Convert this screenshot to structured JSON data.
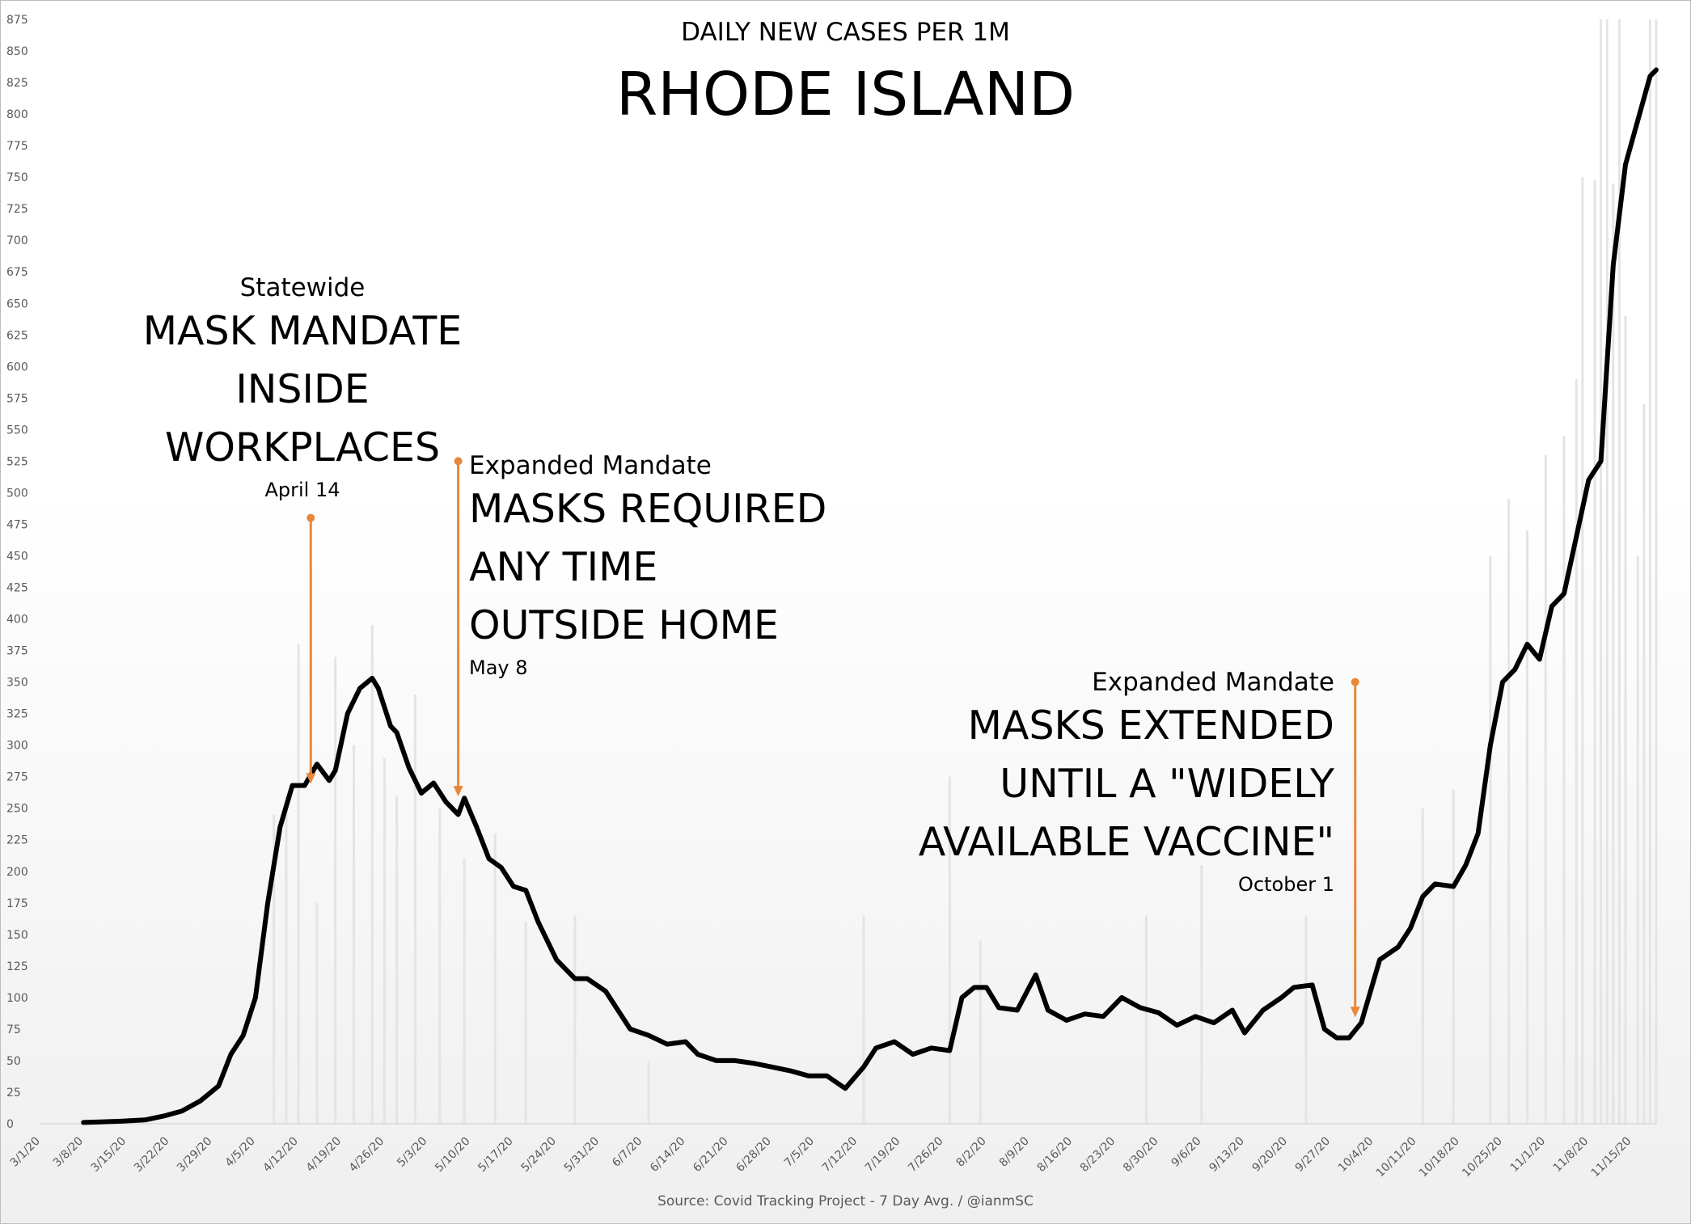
{
  "title": "RHODE ISLAND",
  "subtitle": "DAILY NEW CASES PER 1M",
  "source": "Source: Covid Tracking Project - 7 Day Avg. / @ianmSC",
  "colors": {
    "line": "#000000",
    "bars": "#e4e4e4",
    "annotation": "#e8873a",
    "axis_text": "#595959"
  },
  "annotations": [
    {
      "id": "april14",
      "kicker": "Statewide",
      "lines": [
        "MASK MANDATE",
        "INSIDE",
        "WORKPLACES"
      ],
      "date": "April 14",
      "target_x": "4/14/20",
      "target_y": 270,
      "start_y": 480
    },
    {
      "id": "may8",
      "kicker": "Expanded Mandate",
      "lines": [
        "MASKS REQUIRED",
        "ANY TIME",
        "OUTSIDE HOME"
      ],
      "date": "May 8",
      "target_x": "5/8/20",
      "target_y": 260,
      "start_y": 525
    },
    {
      "id": "oct1",
      "kicker": "Expanded Mandate",
      "lines": [
        "MASKS EXTENDED",
        "UNTIL A \"WIDELY",
        "AVAILABLE VACCINE\""
      ],
      "date": "October 1",
      "target_x": "10/1/20",
      "target_y": 85,
      "start_y": 350
    }
  ],
  "chart_data": {
    "type": "line",
    "title": "RHODE ISLAND",
    "subtitle": "DAILY NEW CASES PER 1M",
    "x_start": "3/1/20",
    "x_end": "11/19/20",
    "ylim": [
      0,
      875
    ],
    "y_ticks": [
      0,
      25,
      50,
      75,
      100,
      125,
      150,
      175,
      200,
      225,
      250,
      275,
      300,
      325,
      350,
      375,
      400,
      425,
      450,
      475,
      500,
      525,
      550,
      575,
      600,
      625,
      650,
      675,
      700,
      725,
      750,
      775,
      800,
      825,
      850,
      875
    ],
    "x_tick_labels": [
      "3/1/20",
      "3/8/20",
      "3/15/20",
      "3/22/20",
      "3/29/20",
      "4/5/20",
      "4/12/20",
      "4/19/20",
      "4/26/20",
      "5/3/20",
      "5/10/20",
      "5/17/20",
      "5/24/20",
      "5/31/20",
      "6/7/20",
      "6/14/20",
      "6/21/20",
      "6/28/20",
      "7/5/20",
      "7/12/20",
      "7/19/20",
      "7/26/20",
      "8/2/20",
      "8/9/20",
      "8/16/20",
      "8/23/20",
      "8/30/20",
      "9/6/20",
      "9/13/20",
      "9/20/20",
      "9/27/20",
      "10/4/20",
      "10/11/20",
      "10/18/20",
      "10/25/20",
      "11/1/20",
      "11/8/20",
      "11/15/20"
    ],
    "grid": false,
    "series": [
      {
        "type": "line",
        "x": [
          "3/8/20",
          "3/14/20",
          "3/18/20",
          "3/21/20",
          "3/24/20",
          "3/27/20",
          "3/30/20",
          "4/1/20",
          "4/3/20",
          "4/5/20",
          "4/7/20",
          "4/9/20",
          "4/11/20",
          "4/13/20",
          "4/15/20",
          "4/17/20",
          "4/18/20",
          "4/20/20",
          "4/22/20",
          "4/24/20",
          "4/25/20",
          "4/27/20",
          "4/28/20",
          "4/30/20",
          "5/2/20",
          "5/4/20",
          "5/6/20",
          "5/8/20",
          "5/9/20",
          "5/11/20",
          "5/13/20",
          "5/15/20",
          "5/17/20",
          "5/19/20",
          "5/21/20",
          "5/24/20",
          "5/27/20",
          "5/29/20",
          "6/1/20",
          "6/3/20",
          "6/5/20",
          "6/8/20",
          "6/11/20",
          "6/14/20",
          "6/16/20",
          "6/19/20",
          "6/22/20",
          "6/25/20",
          "6/28/20",
          "7/1/20",
          "7/4/20",
          "7/7/20",
          "7/10/20",
          "7/13/20",
          "7/15/20",
          "7/18/20",
          "7/21/20",
          "7/24/20",
          "7/27/20",
          "7/29/20",
          "7/31/20",
          "8/2/20",
          "8/4/20",
          "8/7/20",
          "8/10/20",
          "8/12/20",
          "8/15/20",
          "8/18/20",
          "8/21/20",
          "8/24/20",
          "8/27/20",
          "8/30/20",
          "9/2/20",
          "9/5/20",
          "9/8/20",
          "9/11/20",
          "9/13/20",
          "9/16/20",
          "9/19/20",
          "9/21/20",
          "9/24/20",
          "9/26/20",
          "9/28/20",
          "9/30/20",
          "10/2/20",
          "10/5/20",
          "10/8/20",
          "10/10/20",
          "10/12/20",
          "10/14/20",
          "10/17/20",
          "10/19/20",
          "10/21/20",
          "10/23/20",
          "10/25/20",
          "10/27/20",
          "10/29/20",
          "10/31/20",
          "11/2/20",
          "11/4/20",
          "11/6/20",
          "11/8/20",
          "11/10/20",
          "11/12/20",
          "11/14/20",
          "11/16/20",
          "11/18/20",
          "11/19/20"
        ],
        "y": [
          1,
          2,
          3,
          6,
          10,
          18,
          30,
          55,
          70,
          100,
          175,
          235,
          268,
          268,
          285,
          272,
          280,
          325,
          345,
          353,
          345,
          315,
          310,
          282,
          262,
          270,
          255,
          245,
          258,
          235,
          210,
          203,
          188,
          185,
          160,
          130,
          115,
          115,
          105,
          90,
          75,
          70,
          63,
          65,
          55,
          50,
          50,
          48,
          45,
          42,
          38,
          38,
          28,
          45,
          60,
          65,
          55,
          60,
          58,
          100,
          108,
          108,
          92,
          90,
          118,
          90,
          82,
          87,
          85,
          100,
          92,
          88,
          78,
          85,
          80,
          90,
          72,
          90,
          100,
          108,
          110,
          75,
          68,
          68,
          80,
          130,
          140,
          155,
          180,
          190,
          188,
          205,
          230,
          300,
          350,
          360,
          380,
          368,
          410,
          420,
          465,
          510,
          525,
          680,
          760,
          795,
          830,
          835
        ]
      }
    ],
    "bars": {
      "note": "daily values (gray)",
      "x": [
        "4/8/20",
        "4/10/20",
        "4/12/20",
        "4/15/20",
        "4/18/20",
        "4/21/20",
        "4/24/20",
        "4/26/20",
        "4/28/20",
        "5/1/20",
        "5/5/20",
        "5/9/20",
        "5/14/20",
        "5/19/20",
        "5/27/20",
        "6/8/20",
        "7/13/20",
        "7/27/20",
        "8/1/20",
        "8/28/20",
        "9/6/20",
        "9/23/20",
        "10/12/20",
        "10/17/20",
        "10/23/20",
        "10/26/20",
        "10/29/20",
        "11/1/20",
        "11/4/20",
        "11/6/20",
        "11/7/20",
        "11/9/20",
        "11/10/20",
        "11/11/20",
        "11/12/20",
        "11/13/20",
        "11/14/20",
        "11/16/20",
        "11/17/20",
        "11/18/20",
        "11/19/20"
      ],
      "y": [
        245,
        260,
        380,
        175,
        370,
        300,
        395,
        290,
        260,
        340,
        250,
        210,
        230,
        160,
        165,
        50,
        165,
        275,
        145,
        165,
        205,
        165,
        250,
        265,
        450,
        495,
        470,
        530,
        545,
        590,
        750,
        748,
        875,
        875,
        745,
        875,
        640,
        450,
        570,
        875,
        875
      ]
    }
  }
}
